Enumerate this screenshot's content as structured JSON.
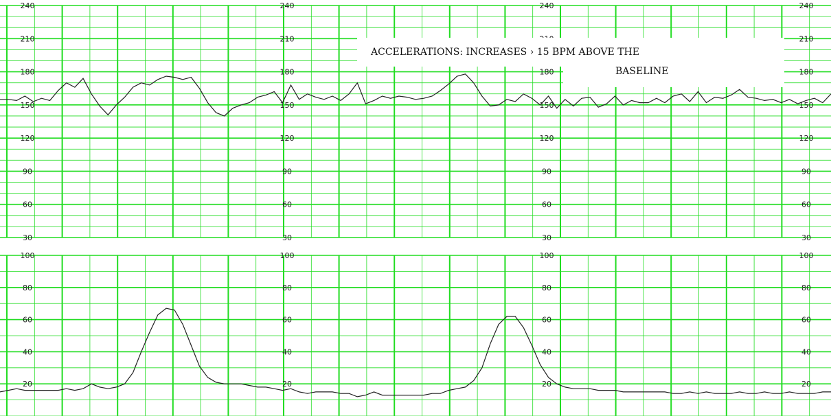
{
  "colors": {
    "grid": "#22dd22",
    "trace": "#222222",
    "background": "#ffffff",
    "callout_bg": "#ffffff"
  },
  "annotation": {
    "line1": "ACCELERATIONS: INCREASES › 15 BPM ABOVE THE",
    "line2": "BASELINE"
  },
  "chart_data": [
    {
      "type": "line",
      "title": "",
      "xlabel": "",
      "ylabel": "",
      "ylim": [
        30,
        240
      ],
      "ytick_labels": [
        "240",
        "210",
        "180",
        "150",
        "120",
        "90",
        "60",
        "30"
      ],
      "label_columns": 4,
      "grid": true,
      "x_range": [
        0,
        100
      ],
      "series": [
        {
          "x": [
            0,
            1,
            2,
            3,
            4,
            5,
            6,
            7,
            8,
            9,
            10,
            11,
            12,
            13,
            14,
            15,
            16,
            17,
            18,
            19,
            20,
            21,
            22,
            23,
            24,
            25,
            26,
            27,
            28,
            29,
            30,
            31,
            32,
            33,
            34,
            35,
            36,
            37,
            38,
            39,
            40,
            41,
            42,
            43,
            44,
            45,
            46,
            47,
            48,
            49,
            50,
            51,
            52,
            53,
            54,
            55,
            56,
            57,
            58,
            59,
            60,
            61,
            62,
            63,
            64,
            65,
            66,
            67,
            68,
            69,
            70,
            71,
            72,
            73,
            74,
            75,
            76,
            77,
            78,
            79,
            80,
            81,
            82,
            83,
            84,
            85,
            86,
            87,
            88,
            89,
            90,
            91,
            92,
            93,
            94,
            95,
            96,
            97,
            98,
            99,
            100
          ],
          "y": [
            155,
            155,
            154,
            158,
            153,
            156,
            154,
            163,
            170,
            166,
            174,
            160,
            149,
            141,
            150,
            157,
            166,
            170,
            168,
            173,
            176,
            175,
            173,
            175,
            165,
            152,
            143,
            140,
            147,
            150,
            152,
            157,
            159,
            162,
            152,
            168,
            155,
            160,
            157,
            155,
            158,
            154,
            160,
            170,
            151,
            154,
            158,
            156,
            158,
            157,
            155,
            156,
            158,
            163,
            169,
            176,
            178,
            170,
            158,
            149,
            150,
            155,
            153,
            160,
            156,
            150,
            158,
            147,
            155,
            149,
            156,
            157,
            148,
            151,
            158,
            150,
            154,
            152,
            152,
            156,
            152,
            158,
            160,
            153,
            162,
            152,
            157,
            156,
            159,
            164,
            157,
            156,
            154,
            155,
            152,
            155,
            151,
            154,
            156,
            152,
            160
          ]
        }
      ]
    },
    {
      "type": "line",
      "title": "",
      "xlabel": "",
      "ylabel": "",
      "ylim": [
        0,
        100
      ],
      "ytick_labels": [
        "100",
        "80",
        "60",
        "40",
        "20"
      ],
      "label_columns": 4,
      "grid": true,
      "x_range": [
        0,
        100
      ],
      "series": [
        {
          "x": [
            0,
            1,
            2,
            3,
            4,
            5,
            6,
            7,
            8,
            9,
            10,
            11,
            12,
            13,
            14,
            15,
            16,
            17,
            18,
            19,
            20,
            21,
            22,
            23,
            24,
            25,
            26,
            27,
            28,
            29,
            30,
            31,
            32,
            33,
            34,
            35,
            36,
            37,
            38,
            39,
            40,
            41,
            42,
            43,
            44,
            45,
            46,
            47,
            48,
            49,
            50,
            51,
            52,
            53,
            54,
            55,
            56,
            57,
            58,
            59,
            60,
            61,
            62,
            63,
            64,
            65,
            66,
            67,
            68,
            69,
            70,
            71,
            72,
            73,
            74,
            75,
            76,
            77,
            78,
            79,
            80,
            81,
            82,
            83,
            84,
            85,
            86,
            87,
            88,
            89,
            90,
            91,
            92,
            93,
            94,
            95,
            96,
            97,
            98,
            99,
            100
          ],
          "y": [
            15,
            16,
            17,
            16,
            16,
            16,
            16,
            16,
            17,
            16,
            17,
            20,
            18,
            17,
            18,
            20,
            27,
            40,
            52,
            63,
            67,
            66,
            57,
            44,
            31,
            24,
            21,
            20,
            20,
            20,
            19,
            18,
            18,
            17,
            16,
            17,
            15,
            14,
            15,
            15,
            15,
            14,
            14,
            12,
            13,
            15,
            13,
            13,
            13,
            13,
            13,
            13,
            14,
            14,
            16,
            17,
            18,
            22,
            30,
            45,
            57,
            62,
            62,
            55,
            44,
            32,
            24,
            20,
            18,
            17,
            17,
            17,
            16,
            16,
            16,
            15,
            15,
            15,
            15,
            15,
            15,
            14,
            14,
            15,
            14,
            15,
            14,
            14,
            14,
            15,
            14,
            14,
            15,
            14,
            14,
            15,
            14,
            14,
            14,
            15,
            15
          ]
        }
      ]
    }
  ]
}
